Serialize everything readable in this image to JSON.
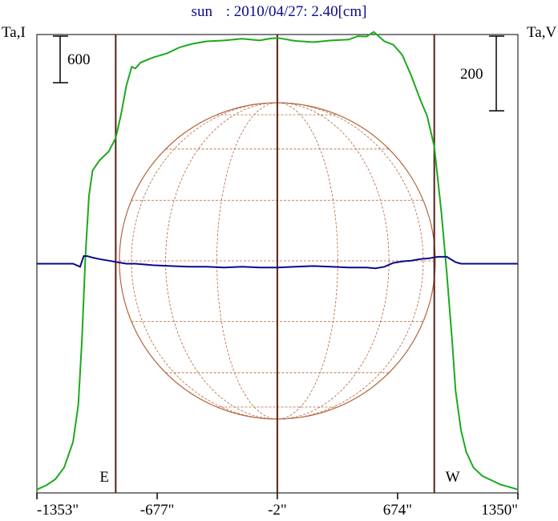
{
  "chart_data": {
    "type": "line",
    "title_object": "sun",
    "title_rest": ": 2010/04/27: 2.40[cm]",
    "left_axis_label": "Ta,I",
    "right_axis_label": "Ta,V",
    "x_ticks": [
      "-1353\"",
      "-677\"",
      "-2\"",
      "674\"",
      "1350\""
    ],
    "x_tick_values": [
      -1353,
      -677,
      -2,
      674,
      1350
    ],
    "xlim": [
      -1353,
      1350
    ],
    "limb_markers": [
      {
        "label": "E",
        "x": -910
      },
      {
        "label": "W",
        "x": 880
      }
    ],
    "center_x": -2,
    "left_scale_bar": {
      "label": "600",
      "value": 600
    },
    "right_scale_bar": {
      "label": "200",
      "value": 200
    },
    "colors": {
      "intensity": "#1ea81e",
      "polarization": "#0a0a8c",
      "disk_grid": "#b4643c",
      "markers": "#5a1e14",
      "title": "#0a0a8c",
      "frame": "#000000"
    },
    "series": [
      {
        "key": "intensity",
        "axis": "left",
        "ylim": [
          0,
          2700
        ],
        "points": [
          [
            -1353,
            20
          ],
          [
            -1300,
            45
          ],
          [
            -1250,
            80
          ],
          [
            -1200,
            150
          ],
          [
            -1150,
            300
          ],
          [
            -1120,
            520
          ],
          [
            -1100,
            900
          ],
          [
            -1080,
            1400
          ],
          [
            -1060,
            1750
          ],
          [
            -1040,
            1900
          ],
          [
            -1000,
            1960
          ],
          [
            -950,
            2010
          ],
          [
            -910,
            2090
          ],
          [
            -880,
            2230
          ],
          [
            -850,
            2400
          ],
          [
            -820,
            2510
          ],
          [
            -800,
            2500
          ],
          [
            -770,
            2535
          ],
          [
            -700,
            2565
          ],
          [
            -620,
            2590
          ],
          [
            -550,
            2625
          ],
          [
            -480,
            2645
          ],
          [
            -400,
            2660
          ],
          [
            -300,
            2665
          ],
          [
            -200,
            2675
          ],
          [
            -100,
            2665
          ],
          [
            -50,
            2675
          ],
          [
            0,
            2680
          ],
          [
            100,
            2662
          ],
          [
            200,
            2655
          ],
          [
            300,
            2665
          ],
          [
            400,
            2670
          ],
          [
            450,
            2690
          ],
          [
            500,
            2688
          ],
          [
            540,
            2715
          ],
          [
            600,
            2660
          ],
          [
            650,
            2640
          ],
          [
            700,
            2580
          ],
          [
            750,
            2460
          ],
          [
            800,
            2320
          ],
          [
            840,
            2220
          ],
          [
            880,
            2040
          ],
          [
            920,
            1650
          ],
          [
            950,
            1300
          ],
          [
            980,
            900
          ],
          [
            1000,
            600
          ],
          [
            1030,
            370
          ],
          [
            1060,
            240
          ],
          [
            1100,
            150
          ],
          [
            1150,
            100
          ],
          [
            1200,
            75
          ],
          [
            1250,
            50
          ],
          [
            1300,
            35
          ],
          [
            1350,
            20
          ]
        ]
      },
      {
        "key": "polarization",
        "axis": "right",
        "ylim": [
          -300,
          300
        ],
        "points": [
          [
            -1353,
            0
          ],
          [
            -1150,
            0
          ],
          [
            -1110,
            -4
          ],
          [
            -1090,
            10
          ],
          [
            -1070,
            10
          ],
          [
            -1040,
            8
          ],
          [
            -1000,
            6
          ],
          [
            -950,
            4
          ],
          [
            -900,
            2
          ],
          [
            -850,
            0
          ],
          [
            -800,
            0
          ],
          [
            -700,
            -2
          ],
          [
            -600,
            -3
          ],
          [
            -500,
            -4
          ],
          [
            -400,
            -4
          ],
          [
            -300,
            -5
          ],
          [
            -200,
            -4
          ],
          [
            -100,
            -5
          ],
          [
            0,
            -5
          ],
          [
            100,
            -4
          ],
          [
            200,
            -3
          ],
          [
            300,
            -4
          ],
          [
            400,
            -5
          ],
          [
            500,
            -5
          ],
          [
            550,
            -6
          ],
          [
            600,
            -4
          ],
          [
            650,
            1
          ],
          [
            700,
            3
          ],
          [
            750,
            4
          ],
          [
            800,
            6
          ],
          [
            850,
            7
          ],
          [
            900,
            9
          ],
          [
            950,
            9
          ],
          [
            1000,
            2
          ],
          [
            1030,
            0
          ],
          [
            1100,
            0
          ],
          [
            1200,
            0
          ],
          [
            1350,
            0
          ]
        ]
      }
    ]
  }
}
